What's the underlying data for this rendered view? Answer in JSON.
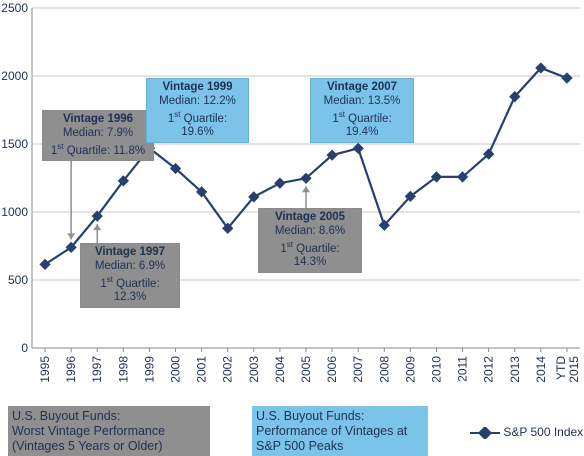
{
  "chart_data": {
    "type": "line",
    "categories": [
      "1995",
      "1996",
      "1997",
      "1998",
      "1999",
      "2000",
      "2001",
      "2002",
      "2003",
      "2004",
      "2005",
      "2006",
      "2007",
      "2008",
      "2009",
      "2010",
      "2011",
      "2012",
      "2013",
      "2014",
      "YTD 2015"
    ],
    "series": [
      {
        "name": "S&P 500 Index",
        "values": [
          615,
          740,
          970,
          1229,
          1469,
          1320,
          1148,
          880,
          1111,
          1212,
          1248,
          1418,
          1468,
          903,
          1115,
          1258,
          1258,
          1426,
          1848,
          2059,
          1985
        ]
      }
    ],
    "ylim": [
      0,
      2500
    ],
    "yticks": [
      0,
      500,
      1000,
      1500,
      2000,
      2500
    ],
    "grid": true,
    "legend_position": "bottom-right",
    "colors": {
      "line": "#27416e",
      "grid": "#c8c8c8",
      "gray_box": "#8f8f8f",
      "blue_box": "#7cc3ea"
    }
  },
  "annotations": {
    "v1996": {
      "title": "Vintage 1996",
      "median": "Median: 7.9%",
      "q_pre": "1",
      "q_sup": "st",
      "q_post": " Quartile: 11.8%"
    },
    "v1997": {
      "title": "Vintage 1997",
      "median": "Median: 6.9%",
      "q_pre": "1",
      "q_sup": "st",
      "q_post": " Quartile: 12.3%"
    },
    "v1999": {
      "title": "Vintage 1999",
      "median": "Median: 12.2%",
      "q_pre": "1",
      "q_sup": "st",
      "q_post": " Quartile: 19.6%"
    },
    "v2005": {
      "title": "Vintage 2005",
      "median": "Median: 8.6%",
      "q_pre": "1",
      "q_sup": "st",
      "q_post": " Quartile: 14.3%"
    },
    "v2007": {
      "title": "Vintage 2007",
      "median": "Median: 13.5%",
      "q_pre": "1",
      "q_sup": "st",
      "q_post": " Quartile: 19.4%"
    }
  },
  "legend": {
    "gray": {
      "line1": "U.S. Buyout Funds:",
      "line2": "Worst Vintage Performance",
      "line3": "(Vintages 5 Years or Older)"
    },
    "blue": {
      "line1": "U.S. Buyout Funds:",
      "line2": "Performance of Vintages at",
      "line3": "S&P 500 Peaks"
    },
    "series_label": "S&P 500 Index"
  }
}
